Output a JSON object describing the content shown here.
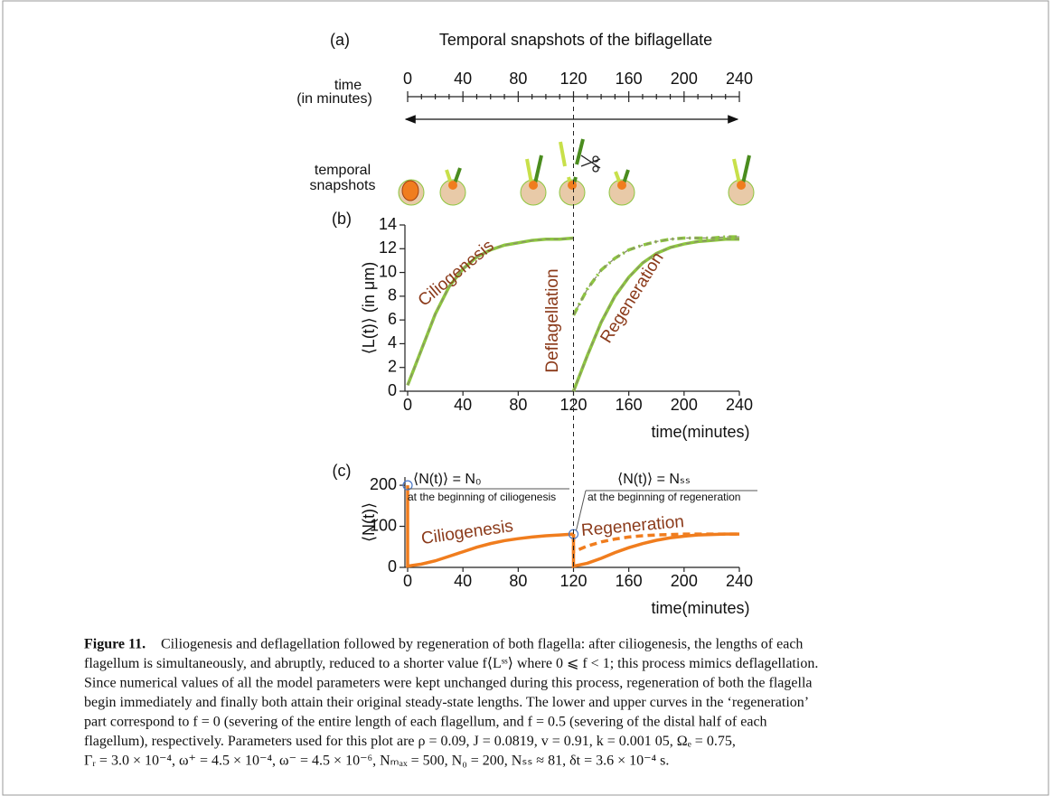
{
  "chart_data": [
    {
      "type": "timeline",
      "label": "(a)",
      "title": "Temporal snapshots of the biflagellate",
      "axis_label": [
        "time",
        "(in minutes)"
      ],
      "snapshots_label": [
        "temporal",
        "snapshots"
      ],
      "xlim": [
        0,
        240
      ],
      "xticks": [
        0,
        40,
        80,
        120,
        160,
        200,
        240
      ],
      "minor_ticks_per_interval": 4
    },
    {
      "type": "line",
      "label": "(b)",
      "ylabel": "⟨L(t)⟩  (in μm)",
      "xlabel": "time(minutes)",
      "xlim": [
        0,
        240
      ],
      "ylim": [
        0,
        14
      ],
      "xticks": [
        0,
        40,
        80,
        120,
        160,
        200,
        240
      ],
      "yticks": [
        0,
        2,
        4,
        6,
        8,
        10,
        12,
        14
      ],
      "annotations": [
        "Ciliogenesis",
        "Deflagellation",
        "Regeneration"
      ],
      "series": [
        {
          "color": "#8dc63f",
          "overlay_color": "#8a8a6e",
          "dash": "none",
          "x": [
            0,
            10,
            20,
            30,
            40,
            50,
            60,
            70,
            80,
            90,
            100,
            110,
            120
          ],
          "values": [
            0.5,
            3.5,
            6.5,
            8.8,
            10.3,
            11.3,
            11.9,
            12.3,
            12.5,
            12.7,
            12.8,
            12.8,
            12.9
          ]
        },
        {
          "color": "#8dc63f",
          "overlay_color": "#8a8a6e",
          "dash": "none",
          "x": [
            120,
            130,
            140,
            150,
            160,
            170,
            180,
            190,
            200,
            210,
            220,
            230,
            240
          ],
          "values": [
            0,
            3,
            5.8,
            8,
            9.6,
            10.8,
            11.6,
            12.1,
            12.4,
            12.6,
            12.7,
            12.8,
            12.8
          ]
        },
        {
          "color": "#8dc63f",
          "overlay_color": "#8a8a6e",
          "dash": "9 4 2 4",
          "x": [
            120,
            130,
            140,
            150,
            160,
            170,
            180,
            190,
            200,
            210,
            220,
            230,
            240
          ],
          "values": [
            6.4,
            8.6,
            10.2,
            11.2,
            11.9,
            12.3,
            12.6,
            12.8,
            12.9,
            12.9,
            12.9,
            13,
            13
          ]
        }
      ]
    },
    {
      "type": "line",
      "label": "(c)",
      "ylabel": "⟨N(t)⟩",
      "xlabel": "time(minutes)",
      "xlim": [
        0,
        240
      ],
      "ylim": [
        0,
        220
      ],
      "xticks": [
        0,
        40,
        80,
        120,
        160,
        200,
        240
      ],
      "yticks": [
        0,
        100,
        200
      ],
      "annotations": [
        "Ciliogenesis",
        "Regeneration",
        "⟨N(t)⟩  =  N₀",
        "at the beginning of ciliogenesis",
        "⟨N(t)⟩  =  Nₛₛ",
        "at the beginning of regeneration"
      ],
      "series": [
        {
          "color": "#f07d1e",
          "dash": "none",
          "x": [
            0,
            0,
            10,
            20,
            30,
            40,
            50,
            60,
            70,
            80,
            90,
            100,
            110,
            120
          ],
          "values": [
            200,
            3,
            8,
            16,
            27,
            38,
            49,
            58,
            65,
            70,
            74,
            77,
            79,
            81
          ]
        },
        {
          "color": "#f07d1e",
          "dash": "none",
          "x": [
            120,
            120,
            130,
            140,
            150,
            160,
            170,
            180,
            190,
            200,
            210,
            220,
            230,
            240
          ],
          "values": [
            81,
            3,
            10,
            22,
            36,
            48,
            58,
            66,
            72,
            76,
            79,
            80,
            81,
            81
          ]
        },
        {
          "color": "#f07d1e",
          "dash": "8 5",
          "x": [
            120,
            120,
            130,
            140,
            150,
            160,
            170,
            180,
            190,
            200,
            210,
            220,
            230,
            240
          ],
          "values": [
            81,
            38,
            52,
            62,
            69,
            74,
            77,
            79,
            80,
            81,
            81,
            81,
            81,
            81
          ]
        }
      ]
    }
  ],
  "caption": {
    "label": "Figure 11.",
    "lines": [
      "Ciliogenesis and deflagellation followed by regeneration of both flagella: after ciliogenesis, the lengths of each",
      "flagellum is simultaneously, and abruptly, reduced to a shorter value f⟨Lˢˢ⟩ where 0 ⩽ f < 1; this process mimics deflagellation.",
      "Since numerical values of all the model parameters were kept unchanged during this process, regeneration of both the flagella",
      "begin immediately and finally both attain their original steady-state lengths. The lower and upper curves in the ‘regeneration’",
      "part correspond to f = 0 (severing of the entire length of each flagellum, and f = 0.5 (severing of the distal half of each",
      "flagellum), respectively. Parameters used for this plot are ρ = 0.09, J = 0.0819, v = 0.91, k = 0.001 05, Ωₑ = 0.75,",
      "Γᵣ = 3.0 × 10⁻⁴, ω⁺ = 4.5 × 10⁻⁴, ω⁻ = 4.5 × 10⁻⁶, Nₘₐₓ = 500, N₀ = 200, Nₛₛ ≈ 81, δt = 3.6 × 10⁻⁴ s."
    ]
  }
}
